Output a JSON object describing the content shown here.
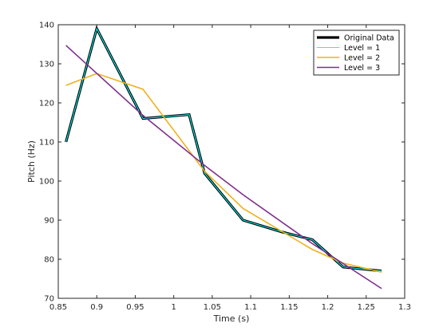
{
  "chart_data": {
    "type": "line",
    "xlabel": "Time (s)",
    "ylabel": "Pitch (Hz)",
    "xlim": [
      0.85,
      1.3
    ],
    "ylim": [
      70,
      140
    ],
    "xticks": [
      0.85,
      0.9,
      0.95,
      1,
      1.05,
      1.1,
      1.15,
      1.2,
      1.25,
      1.3
    ],
    "xtick_labels": [
      "0.85",
      "0.9",
      "0.95",
      "1",
      "1.05",
      "1.1",
      "1.15",
      "1.2",
      "1.25",
      "1.3"
    ],
    "yticks": [
      70,
      80,
      90,
      100,
      110,
      120,
      130,
      140
    ],
    "ytick_labels": [
      "70",
      "80",
      "90",
      "100",
      "110",
      "120",
      "130",
      "140"
    ],
    "grid": false,
    "legend_position": "top-right",
    "series": [
      {
        "name": "Original Data",
        "color": "#000000",
        "x": [
          0.86,
          0.9,
          0.96,
          1.02,
          1.04,
          1.09,
          1.14,
          1.18,
          1.22,
          1.27
        ],
        "y": [
          110,
          139,
          116,
          117,
          102,
          90,
          87,
          85,
          78,
          77
        ]
      },
      {
        "name": "Level = 1",
        "color": "#00ffff",
        "x": [
          0.86,
          0.9,
          0.96,
          1.02,
          1.04,
          1.09,
          1.14,
          1.18,
          1.22,
          1.27
        ],
        "y": [
          110,
          139,
          116,
          117,
          102,
          90,
          87,
          85,
          78,
          77
        ]
      },
      {
        "name": "Level = 2",
        "color": "#edb120",
        "x": [
          0.86,
          0.9,
          0.96,
          1.04,
          1.09,
          1.18,
          1.22,
          1.27
        ],
        "y": [
          124.5,
          127.5,
          123.5,
          102.5,
          93,
          82.5,
          79,
          76.7
        ]
      },
      {
        "name": "Level = 3",
        "color": "#7e2f8e",
        "x": [
          0.86,
          0.96,
          1.04,
          1.09,
          1.18,
          1.27
        ],
        "y": [
          134.7,
          116.8,
          104,
          96.5,
          84,
          72.5
        ]
      }
    ]
  }
}
